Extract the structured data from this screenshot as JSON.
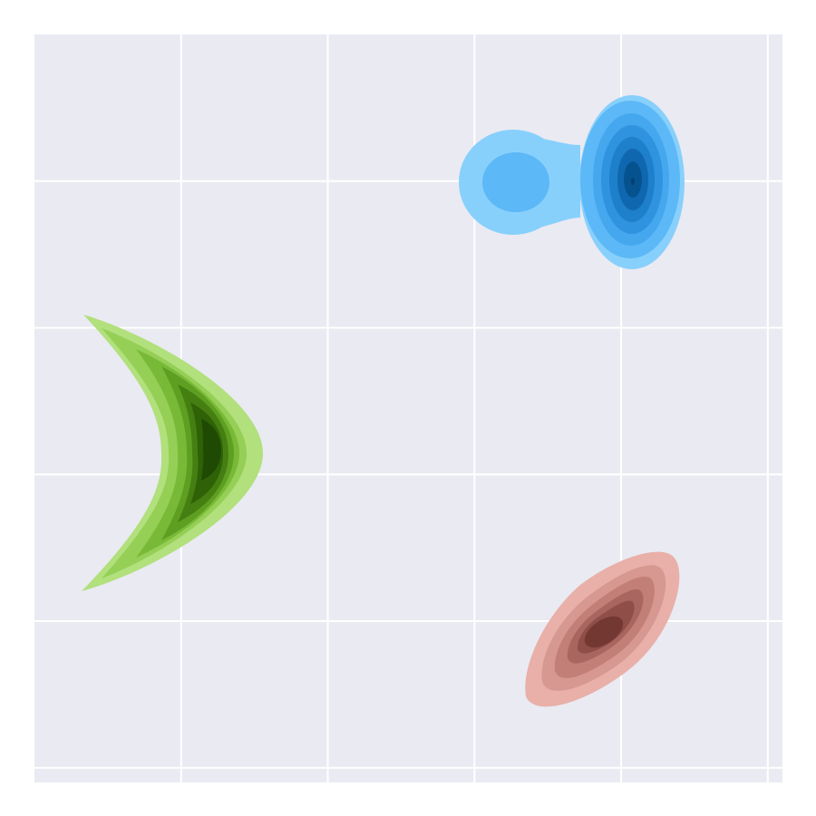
{
  "chart_data": {
    "type": "contour",
    "title": "",
    "xlabel": "",
    "ylabel": "",
    "xlim": [
      -2.5,
      2.6
    ],
    "ylim": [
      -2.6,
      2.5
    ],
    "grid": true,
    "x_gridlines": [
      -1.5,
      -0.5,
      0.5,
      1.5,
      2.5
    ],
    "y_gridlines": [
      1.5,
      0.5,
      -0.5,
      -1.5,
      -2.5
    ],
    "background_color": "#eaeaf2",
    "series": [
      {
        "shape": "two-lobed density",
        "colors": [
          "#88d0fc",
          "#5cb8f6",
          "#45a7ee",
          "#2f93df",
          "#1e7fca",
          "#0f68af",
          "#06528f",
          "#023f73"
        ],
        "peak": [
          1.58,
          1.5
        ],
        "secondary_peak": [
          0.5,
          1.5
        ],
        "x_extent": [
          0.15,
          1.95
        ],
        "y_extent": [
          0.92,
          2.08
        ]
      },
      {
        "shape": "crescent density",
        "colors": [
          "#b1e07c",
          "#95cf56",
          "#79b938",
          "#5e9f22",
          "#457f12",
          "#2f6207",
          "#1e4a03"
        ],
        "peak": [
          -1.3,
          0.0
        ],
        "x_extent": [
          -2.2,
          -0.85
        ],
        "y_extent": [
          -0.94,
          0.94
        ]
      },
      {
        "shape": "tilted elliptical density",
        "colors": [
          "#e8b0a8",
          "#d69890",
          "#c27f78",
          "#a96660",
          "#8f4e48",
          "#743833",
          "#5a2420"
        ],
        "peak": [
          1.38,
          -1.98
        ],
        "x_extent": [
          0.86,
          1.95
        ],
        "y_extent": [
          -2.65,
          -1.57
        ]
      }
    ]
  }
}
